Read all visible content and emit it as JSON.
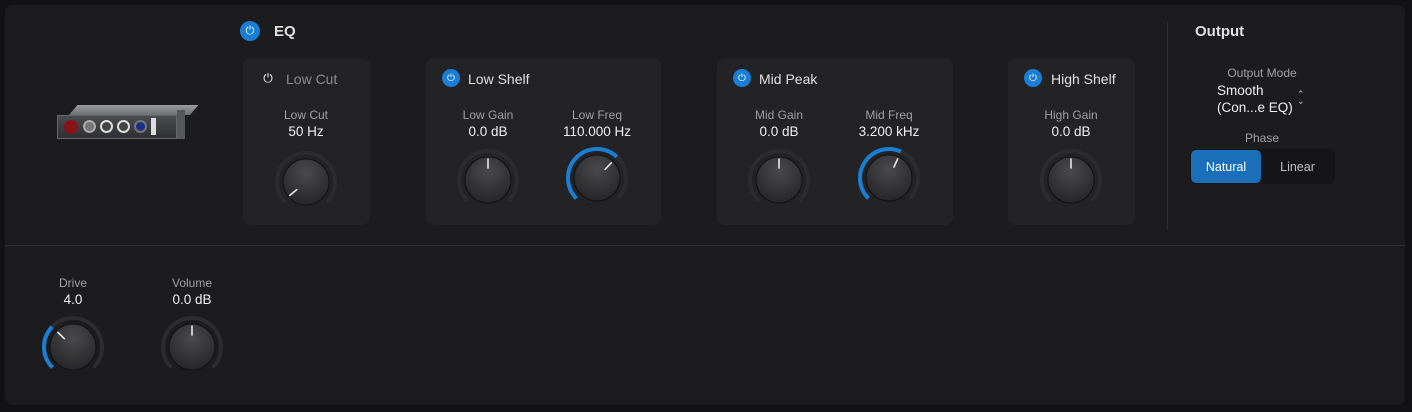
{
  "eq": {
    "title": "EQ",
    "enabled": true
  },
  "bands": [
    {
      "name": "Low Cut",
      "enabled": false,
      "knobs": [
        {
          "label": "Low Cut",
          "value": "50 Hz",
          "fraction": 0.02
        }
      ]
    },
    {
      "name": "Low Shelf",
      "enabled": true,
      "knobs": [
        {
          "label": "Low Gain",
          "value": "0.0 dB",
          "fraction": 0.5,
          "bipolar": true
        },
        {
          "label": "Low Freq",
          "value": "110.000 Hz",
          "fraction": 0.66
        }
      ]
    },
    {
      "name": "Mid Peak",
      "enabled": true,
      "knobs": [
        {
          "label": "Mid Gain",
          "value": "0.0 dB",
          "fraction": 0.5,
          "bipolar": true
        },
        {
          "label": "Mid Freq",
          "value": "3.200 kHz",
          "fraction": 0.59
        }
      ]
    },
    {
      "name": "High Shelf",
      "enabled": true,
      "knobs": [
        {
          "label": "High Gain",
          "value": "0.0 dB",
          "fraction": 0.5,
          "bipolar": true
        }
      ]
    }
  ],
  "output": {
    "title": "Output",
    "mode_label": "Output Mode",
    "mode_value_line1": "Smooth",
    "mode_value_line2": "(Con...e EQ)",
    "phase_label": "Phase",
    "phase_options": [
      "Natural",
      "Linear"
    ],
    "phase_selected": "Natural"
  },
  "bottom": [
    {
      "label": "Drive",
      "value": "4.0",
      "fraction": 0.33
    },
    {
      "label": "Volume",
      "value": "0.0 dB",
      "fraction": 0.5,
      "bipolar": true
    }
  ],
  "colors": {
    "accent": "#1a7fd4",
    "background": "#1c1c1e",
    "section": "#232326"
  }
}
